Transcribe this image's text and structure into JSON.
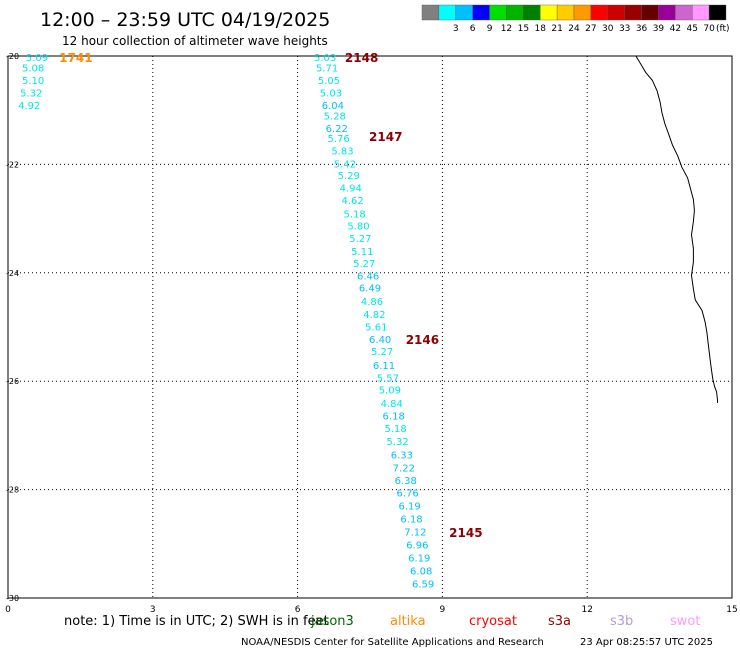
{
  "header": {
    "title": "12:00 – 23:59 UTC 04/19/2025",
    "subtitle": "12 hour collection of altimeter wave heights"
  },
  "colorbar": {
    "unit_label": "(ft)",
    "bins": [
      {
        "label": "",
        "color": "#808080"
      },
      {
        "label": "3",
        "color": "#00ffff"
      },
      {
        "label": "6",
        "color": "#00bfff"
      },
      {
        "label": "9",
        "color": "#0000ff"
      },
      {
        "label": "12",
        "color": "#00e000"
      },
      {
        "label": "15",
        "color": "#00b400"
      },
      {
        "label": "18",
        "color": "#008000"
      },
      {
        "label": "21",
        "color": "#ffff00"
      },
      {
        "label": "24",
        "color": "#ffcc00"
      },
      {
        "label": "27",
        "color": "#ff9900"
      },
      {
        "label": "30",
        "color": "#ff0000"
      },
      {
        "label": "33",
        "color": "#cc0000"
      },
      {
        "label": "36",
        "color": "#990000"
      },
      {
        "label": "39",
        "color": "#660000"
      },
      {
        "label": "42",
        "color": "#990099"
      },
      {
        "label": "45",
        "color": "#cc66cc"
      },
      {
        "label": "70",
        "color": "#ff99ff"
      },
      {
        "label": "",
        "color": "#000000"
      }
    ]
  },
  "footer": {
    "note_prefix": "note: 1) Time is in UTC; 2) SWH is in feet",
    "satellites": [
      {
        "name": "jason3",
        "color": "#006400"
      },
      {
        "name": "altika",
        "color": "#ff8c00"
      },
      {
        "name": "cryosat",
        "color": "#ff0000"
      },
      {
        "name": "s3a",
        "color": "#8b0000"
      },
      {
        "name": "s3b",
        "color": "#b19cd9"
      },
      {
        "name": "swot",
        "color": "#ff99ff"
      }
    ],
    "credit": "NOAA/NESDIS Center for Satellite Applications and Research",
    "timestamp": "23 Apr 08:25:57 UTC 2025"
  },
  "chart_data": {
    "type": "scatter",
    "x_axis": {
      "range": [
        0,
        15
      ],
      "ticks": [
        0,
        3,
        6,
        9,
        12,
        15
      ]
    },
    "y_axis": {
      "range": [
        -30,
        -20
      ],
      "ticks": [
        -20,
        -22,
        -24,
        -26,
        -28,
        -30
      ]
    },
    "grid": true,
    "track_colors": {
      "s3a": "#8b0000",
      "altika": "#ff8c00"
    },
    "value_colors": {
      "light": "#00e5ee",
      "mid": "#00bfff"
    },
    "pass_labels": [
      {
        "label": "1741",
        "x": 1.06,
        "y": -20.02,
        "satellite": "altika"
      },
      {
        "label": "2148",
        "x": 6.98,
        "y": -20.02,
        "satellite": "s3a"
      },
      {
        "label": "2147",
        "x": 7.48,
        "y": -21.48,
        "satellite": "s3a"
      },
      {
        "label": "2146",
        "x": 8.24,
        "y": -25.22,
        "satellite": "s3a"
      },
      {
        "label": "2145",
        "x": 9.14,
        "y": -28.78,
        "satellite": "s3a"
      }
    ],
    "tracks": [
      {
        "satellite": "altika",
        "points": [
          {
            "x": 0.37,
            "y": -20.02,
            "swh": "5.09",
            "shade": "light"
          },
          {
            "x": 0.29,
            "y": -20.21,
            "swh": "5.08",
            "shade": "light"
          },
          {
            "x": 0.29,
            "y": -20.44,
            "swh": "5.10",
            "shade": "light"
          },
          {
            "x": 0.25,
            "y": -20.67,
            "swh": "5.32",
            "shade": "light"
          },
          {
            "x": 0.21,
            "y": -20.9,
            "swh": "4.92",
            "shade": "light"
          }
        ]
      },
      {
        "satellite": "s3a",
        "points": [
          {
            "x": 6.34,
            "y": -20.02,
            "swh": "5.03",
            "shade": "light"
          },
          {
            "x": 6.38,
            "y": -20.21,
            "swh": "5.71",
            "shade": "light"
          },
          {
            "x": 6.42,
            "y": -20.44,
            "swh": "5.05",
            "shade": "light"
          },
          {
            "x": 6.46,
            "y": -20.67,
            "swh": "5.03",
            "shade": "light"
          },
          {
            "x": 6.5,
            "y": -20.9,
            "swh": "6.04",
            "shade": "mid"
          },
          {
            "x": 6.54,
            "y": -21.1,
            "swh": "5.28",
            "shade": "light"
          },
          {
            "x": 6.58,
            "y": -21.33,
            "swh": "6.22",
            "shade": "mid"
          },
          {
            "x": 6.62,
            "y": -21.51,
            "swh": "5.76",
            "shade": "light"
          },
          {
            "x": 6.7,
            "y": -21.74,
            "swh": "5.83",
            "shade": "light"
          },
          {
            "x": 6.75,
            "y": -21.98,
            "swh": "5.42",
            "shade": "light"
          },
          {
            "x": 6.83,
            "y": -22.2,
            "swh": "5.29",
            "shade": "light"
          },
          {
            "x": 6.87,
            "y": -22.43,
            "swh": "4.94",
            "shade": "light"
          },
          {
            "x": 6.91,
            "y": -22.66,
            "swh": "4.62",
            "shade": "light"
          },
          {
            "x": 6.95,
            "y": -22.91,
            "swh": "5.18",
            "shade": "light"
          },
          {
            "x": 7.03,
            "y": -23.13,
            "swh": "5.80",
            "shade": "light"
          },
          {
            "x": 7.07,
            "y": -23.36,
            "swh": "5.27",
            "shade": "light"
          },
          {
            "x": 7.11,
            "y": -23.6,
            "swh": "5.11",
            "shade": "light"
          },
          {
            "x": 7.15,
            "y": -23.82,
            "swh": "5.27",
            "shade": "light"
          },
          {
            "x": 7.23,
            "y": -24.05,
            "swh": "6.46",
            "shade": "mid"
          },
          {
            "x": 7.27,
            "y": -24.27,
            "swh": "6.49",
            "shade": "mid"
          },
          {
            "x": 7.31,
            "y": -24.52,
            "swh": "4.86",
            "shade": "light"
          },
          {
            "x": 7.36,
            "y": -24.76,
            "swh": "4.82",
            "shade": "light"
          },
          {
            "x": 7.4,
            "y": -24.99,
            "swh": "5.61",
            "shade": "light"
          },
          {
            "x": 7.48,
            "y": -25.22,
            "swh": "6.40",
            "shade": "mid"
          },
          {
            "x": 7.52,
            "y": -25.44,
            "swh": "5.27",
            "shade": "light"
          },
          {
            "x": 7.56,
            "y": -25.7,
            "swh": "6.11",
            "shade": "mid"
          },
          {
            "x": 7.64,
            "y": -25.93,
            "swh": "5.57",
            "shade": "light"
          },
          {
            "x": 7.68,
            "y": -26.15,
            "swh": "5.09",
            "shade": "light"
          },
          {
            "x": 7.72,
            "y": -26.4,
            "swh": "4.84",
            "shade": "light"
          },
          {
            "x": 7.76,
            "y": -26.63,
            "swh": "6.18",
            "shade": "mid"
          },
          {
            "x": 7.8,
            "y": -26.86,
            "swh": "5.18",
            "shade": "light"
          },
          {
            "x": 7.84,
            "y": -27.1,
            "swh": "5.32",
            "shade": "light"
          },
          {
            "x": 7.93,
            "y": -27.35,
            "swh": "6.33",
            "shade": "mid"
          },
          {
            "x": 7.97,
            "y": -27.59,
            "swh": "7.22",
            "shade": "mid"
          },
          {
            "x": 8.01,
            "y": -27.82,
            "swh": "6.38",
            "shade": "mid"
          },
          {
            "x": 8.05,
            "y": -28.05,
            "swh": "6.76",
            "shade": "mid"
          },
          {
            "x": 8.09,
            "y": -28.29,
            "swh": "6.19",
            "shade": "mid"
          },
          {
            "x": 8.13,
            "y": -28.53,
            "swh": "6.18",
            "shade": "mid"
          },
          {
            "x": 8.21,
            "y": -28.77,
            "swh": "7.12",
            "shade": "mid"
          },
          {
            "x": 8.25,
            "y": -29.01,
            "swh": "6.96",
            "shade": "mid"
          },
          {
            "x": 8.29,
            "y": -29.25,
            "swh": "6.19",
            "shade": "mid"
          },
          {
            "x": 8.33,
            "y": -29.49,
            "swh": "6.08",
            "shade": "mid"
          },
          {
            "x": 8.37,
            "y": -29.73,
            "swh": "6.59",
            "shade": "mid"
          }
        ]
      }
    ],
    "coastline": [
      [
        13.01,
        -20.0
      ],
      [
        13.11,
        -20.15
      ],
      [
        13.21,
        -20.3
      ],
      [
        13.35,
        -20.45
      ],
      [
        13.45,
        -20.65
      ],
      [
        13.51,
        -20.85
      ],
      [
        13.55,
        -21.05
      ],
      [
        13.61,
        -21.25
      ],
      [
        13.69,
        -21.45
      ],
      [
        13.77,
        -21.65
      ],
      [
        13.88,
        -21.85
      ],
      [
        13.96,
        -22.05
      ],
      [
        14.08,
        -22.25
      ],
      [
        14.14,
        -22.45
      ],
      [
        14.2,
        -22.65
      ],
      [
        14.22,
        -22.85
      ],
      [
        14.2,
        -23.05
      ],
      [
        14.16,
        -23.3
      ],
      [
        14.2,
        -23.55
      ],
      [
        14.2,
        -23.8
      ],
      [
        14.16,
        -24.05
      ],
      [
        14.2,
        -24.3
      ],
      [
        14.24,
        -24.5
      ],
      [
        14.38,
        -24.7
      ],
      [
        14.44,
        -24.9
      ],
      [
        14.48,
        -25.1
      ],
      [
        14.52,
        -25.4
      ],
      [
        14.56,
        -25.7
      ],
      [
        14.6,
        -25.95
      ],
      [
        14.64,
        -26.1
      ],
      [
        14.68,
        -26.2
      ],
      [
        14.7,
        -26.35
      ],
      [
        14.7,
        -26.4
      ]
    ]
  }
}
